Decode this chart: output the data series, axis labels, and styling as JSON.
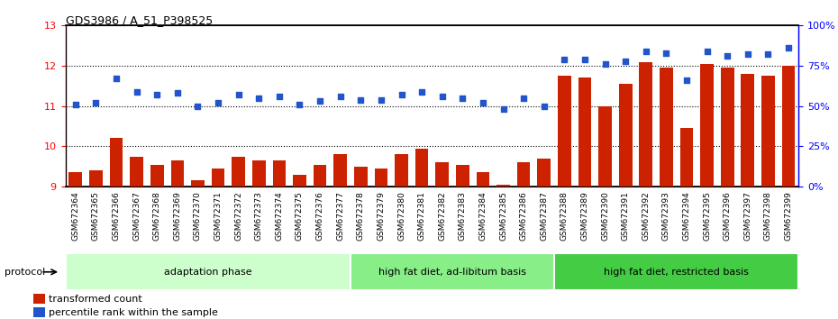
{
  "title": "GDS3986 / A_51_P398525",
  "categories": [
    "GSM672364",
    "GSM672365",
    "GSM672366",
    "GSM672367",
    "GSM672368",
    "GSM672369",
    "GSM672370",
    "GSM672371",
    "GSM672372",
    "GSM672373",
    "GSM672374",
    "GSM672375",
    "GSM672376",
    "GSM672377",
    "GSM672378",
    "GSM672379",
    "GSM672380",
    "GSM672381",
    "GSM672382",
    "GSM672383",
    "GSM672384",
    "GSM672385",
    "GSM672386",
    "GSM672387",
    "GSM672388",
    "GSM672389",
    "GSM672390",
    "GSM672391",
    "GSM672392",
    "GSM672393",
    "GSM672394",
    "GSM672395",
    "GSM672396",
    "GSM672397",
    "GSM672398",
    "GSM672399"
  ],
  "bar_values": [
    9.35,
    9.4,
    10.2,
    9.75,
    9.55,
    9.65,
    9.15,
    9.45,
    9.75,
    9.65,
    9.65,
    9.3,
    9.55,
    9.8,
    9.5,
    9.45,
    9.8,
    9.95,
    9.6,
    9.55,
    9.35,
    9.05,
    9.6,
    9.7,
    11.75,
    11.7,
    11.0,
    11.55,
    12.1,
    11.95,
    10.45,
    12.05,
    11.95,
    11.8,
    11.75,
    12.0
  ],
  "dot_values": [
    51,
    52,
    67,
    59,
    57,
    58,
    50,
    52,
    57,
    55,
    56,
    51,
    53,
    56,
    54,
    54,
    57,
    59,
    56,
    55,
    52,
    48,
    55,
    50,
    79,
    79,
    76,
    78,
    84,
    83,
    66,
    84,
    81,
    82,
    82,
    86
  ],
  "ylim_left": [
    9,
    13
  ],
  "ylim_right": [
    0,
    100
  ],
  "yticks_left": [
    9,
    10,
    11,
    12,
    13
  ],
  "yticks_right": [
    0,
    25,
    50,
    75,
    100
  ],
  "ytick_labels_right": [
    "0%",
    "25%",
    "50%",
    "75%",
    "100%"
  ],
  "bar_color": "#cc2200",
  "dot_color": "#2255cc",
  "group_labels": [
    "adaptation phase",
    "high fat diet, ad-libitum basis",
    "high fat diet, restricted basis"
  ],
  "group_colors": [
    "#ccffcc",
    "#88ee88",
    "#44cc44"
  ],
  "group_boundaries": [
    0,
    14,
    24,
    36
  ],
  "protocol_label": "protocol",
  "legend_red": "transformed count",
  "legend_blue": "percentile rank within the sample",
  "dotted_yticks": [
    10,
    11,
    12
  ],
  "xtick_bg_color": "#c8c8c8"
}
